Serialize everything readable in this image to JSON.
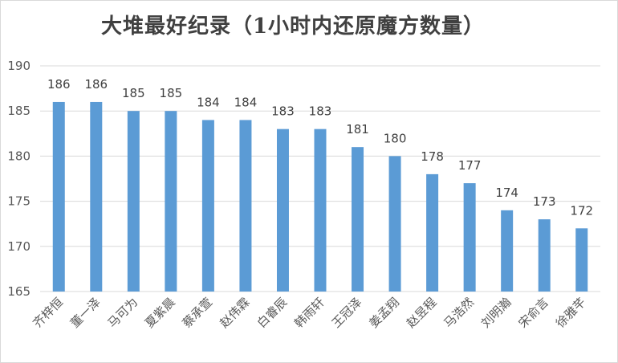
{
  "chart_data": {
    "type": "bar",
    "title": "大堆最好纪录（1小时内还原魔方数量）",
    "categories": [
      "齐梓恒",
      "董一泽",
      "马可为",
      "夏紫晨",
      "蔡承萱",
      "赵伟霖",
      "白睿辰",
      "韩雨轩",
      "王冠泽",
      "姜孟翔",
      "赵昱程",
      "马浩然",
      "刘明瀚",
      "宋俞言",
      "徐雅芊"
    ],
    "values": [
      186,
      186,
      185,
      185,
      184,
      184,
      183,
      183,
      181,
      180,
      178,
      177,
      174,
      173,
      172
    ],
    "ylim": [
      165,
      190
    ],
    "yticks": [
      165,
      170,
      175,
      180,
      185,
      190
    ],
    "xlabel": "",
    "ylabel": "",
    "bar_color": "#5b9bd5",
    "grid": true,
    "legend": "none"
  }
}
